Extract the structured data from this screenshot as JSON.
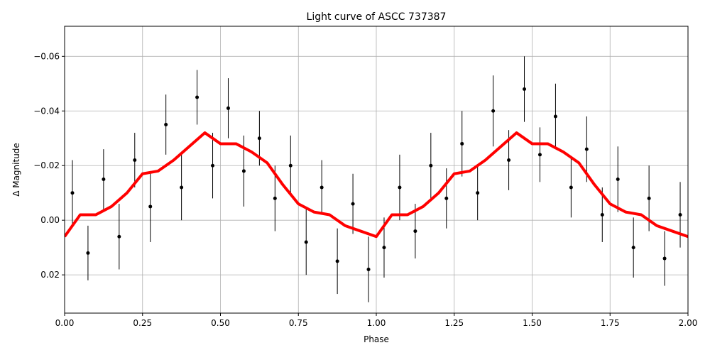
{
  "chart_data": {
    "type": "scatter",
    "title": "Light curve of ASCC 737387",
    "xlabel": "Phase",
    "ylabel": "Δ Magnitude",
    "xlim": [
      0,
      2
    ],
    "ylim": [
      0.034,
      -0.071
    ],
    "xticks": [
      {
        "value": 0,
        "label": "0.00"
      },
      0.25,
      {
        "value": 0.5,
        "label": "0.50"
      },
      0.75,
      {
        "value": 1,
        "label": "1.00"
      },
      1.25,
      {
        "value": 1.5,
        "label": "1.50"
      },
      1.75,
      {
        "value": 2,
        "label": "2.00"
      }
    ],
    "yticks": [
      {
        "value": -0.06,
        "label": "−0.06"
      },
      {
        "value": -0.04,
        "label": "−0.04"
      },
      {
        "value": -0.02,
        "label": "−0.02"
      },
      {
        "value": 0,
        "label": "0.00"
      },
      0.02
    ],
    "grid": true,
    "points": {
      "color": "#000000",
      "x": [
        0.025,
        0.075,
        0.125,
        0.175,
        0.225,
        0.275,
        0.325,
        0.375,
        0.425,
        0.475,
        0.525,
        0.575,
        0.625,
        0.675,
        0.725,
        0.775,
        0.825,
        0.875,
        0.925,
        0.975,
        1.025,
        1.075,
        1.125,
        1.175,
        1.225,
        1.275,
        1.325,
        1.375,
        1.425,
        1.475,
        1.525,
        1.575,
        1.625,
        1.675,
        1.725,
        1.775,
        1.825,
        1.875,
        1.925,
        1.975
      ],
      "values": [
        -0.01,
        0.012,
        -0.015,
        0.006,
        -0.022,
        -0.005,
        -0.035,
        -0.012,
        -0.045,
        -0.02,
        -0.041,
        -0.018,
        -0.03,
        -0.008,
        -0.02,
        0.008,
        -0.012,
        0.015,
        -0.006,
        0.018,
        0.01,
        -0.012,
        0.004,
        -0.02,
        -0.008,
        -0.028,
        -0.01,
        -0.04,
        -0.022,
        -0.048,
        -0.024,
        -0.038,
        -0.012,
        -0.026,
        -0.002,
        -0.015,
        0.01,
        -0.008,
        0.014,
        -0.002
      ],
      "errors": [
        0.012,
        0.01,
        0.011,
        0.012,
        0.01,
        0.013,
        0.011,
        0.012,
        0.01,
        0.012,
        0.011,
        0.013,
        0.01,
        0.012,
        0.011,
        0.012,
        0.01,
        0.012,
        0.011,
        0.012,
        0.011,
        0.012,
        0.01,
        0.012,
        0.011,
        0.012,
        0.01,
        0.013,
        0.011,
        0.012,
        0.01,
        0.012,
        0.011,
        0.012,
        0.01,
        0.012,
        0.011,
        0.012,
        0.01,
        0.012
      ]
    },
    "curve": {
      "color": "#ff0000",
      "x": [
        0,
        0.05,
        0.1,
        0.15,
        0.2,
        0.25,
        0.3,
        0.35,
        0.4,
        0.45,
        0.5,
        0.55,
        0.6,
        0.65,
        0.7,
        0.75,
        0.8,
        0.85,
        0.9,
        0.95,
        1,
        1.05,
        1.1,
        1.15,
        1.2,
        1.25,
        1.3,
        1.35,
        1.4,
        1.45,
        1.5,
        1.55,
        1.6,
        1.65,
        1.7,
        1.75,
        1.8,
        1.85,
        1.9,
        1.95,
        2
      ],
      "values": [
        0.006,
        -0.002,
        -0.002,
        -0.005,
        -0.01,
        -0.017,
        -0.018,
        -0.022,
        -0.027,
        -0.032,
        -0.028,
        -0.028,
        -0.025,
        -0.021,
        -0.013,
        -0.006,
        -0.003,
        -0.002,
        0.002,
        0.004,
        0.006,
        -0.002,
        -0.002,
        -0.005,
        -0.01,
        -0.017,
        -0.018,
        -0.022,
        -0.027,
        -0.032,
        -0.028,
        -0.028,
        -0.025,
        -0.021,
        -0.013,
        -0.006,
        -0.003,
        -0.002,
        0.002,
        0.004,
        0.006
      ]
    }
  }
}
